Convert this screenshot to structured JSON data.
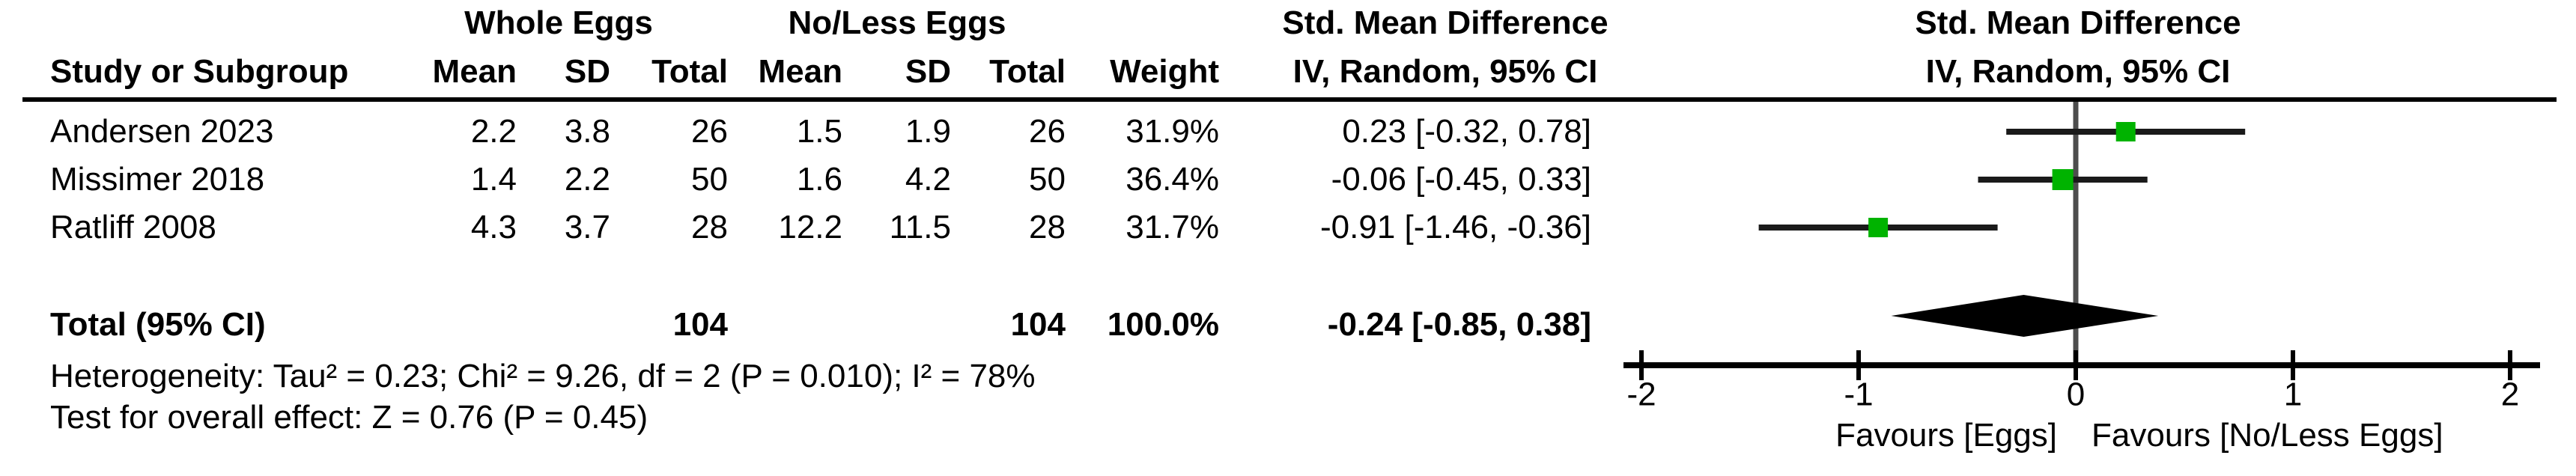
{
  "table": {
    "header": {
      "study_col": "Study or Subgroup",
      "group1": "Whole Eggs",
      "group2": "No/Less Eggs",
      "cols": [
        "Mean",
        "SD",
        "Total",
        "Mean",
        "SD",
        "Total",
        "Weight"
      ],
      "effect_line1": "Std. Mean Difference",
      "effect_line2": "IV, Random, 95% CI"
    },
    "rows": [
      {
        "study": "Andersen 2023",
        "mean1": "2.2",
        "sd1": "3.8",
        "total1": "26",
        "mean2": "1.5",
        "sd2": "1.9",
        "total2": "26",
        "weight": "31.9%",
        "ci": "0.23 [-0.32, 0.78]"
      },
      {
        "study": "Missimer 2018",
        "mean1": "1.4",
        "sd1": "2.2",
        "total1": "50",
        "mean2": "1.6",
        "sd2": "4.2",
        "total2": "50",
        "weight": "36.4%",
        "ci": "-0.06 [-0.45, 0.33]"
      },
      {
        "study": "Ratliff 2008",
        "mean1": "4.3",
        "sd1": "3.7",
        "total1": "28",
        "mean2": "12.2",
        "sd2": "11.5",
        "total2": "28",
        "weight": "31.7%",
        "ci": "-0.91 [-1.46, -0.36]"
      }
    ],
    "total_row": {
      "label": "Total (95% CI)",
      "total1": "104",
      "total2": "104",
      "weight": "100.0%",
      "ci": "-0.24 [-0.85, 0.38]"
    },
    "footnotes": [
      "Heterogeneity: Tau² = 0.23; Chi² = 9.26, df = 2 (P = 0.010); I² = 78%",
      "Test for overall effect: Z = 0.76 (P = 0.45)"
    ]
  },
  "plot": {
    "header_line1": "Std. Mean Difference",
    "header_line2": "IV, Random, 95% CI",
    "xlabel_left": "Favours [Eggs]",
    "xlabel_right": "Favours [No/Less Eggs]",
    "marker_color": "#00b300",
    "line_color": "#1a1a1a",
    "zero_line_color": "#4d4d4d",
    "axis_color": "#000000"
  },
  "chart_data": {
    "type": "forest",
    "effect_measure": "Std. Mean Difference",
    "model": "IV, Random, 95% CI",
    "xlim": [
      -2,
      2
    ],
    "x_ticks": [
      -2,
      -1,
      0,
      1,
      2
    ],
    "xlabel_left": "Favours [Eggs]",
    "xlabel_right": "Favours [No/Less Eggs]",
    "studies": [
      {
        "name": "Andersen 2023",
        "smd": 0.23,
        "ci_low": -0.32,
        "ci_high": 0.78,
        "weight": 31.9
      },
      {
        "name": "Missimer 2018",
        "smd": -0.06,
        "ci_low": -0.45,
        "ci_high": 0.33,
        "weight": 36.4
      },
      {
        "name": "Ratliff 2008",
        "smd": -0.91,
        "ci_low": -1.46,
        "ci_high": -0.36,
        "weight": 31.7
      }
    ],
    "total": {
      "name": "Total (95% CI)",
      "smd": -0.24,
      "ci_low": -0.85,
      "ci_high": 0.38,
      "weight": 100.0,
      "n1": 104,
      "n2": 104
    },
    "heterogeneity": "Tau² = 0.23; Chi² = 9.26, df = 2 (P = 0.010); I² = 78%",
    "overall_effect_test": "Z = 0.76 (P = 0.45)"
  }
}
